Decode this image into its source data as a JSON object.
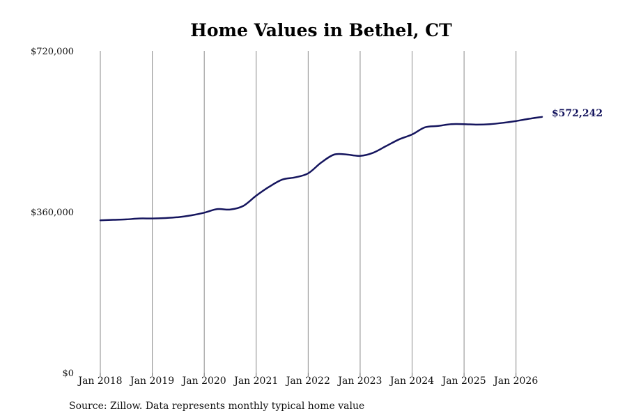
{
  "chart_data": {
    "type": "line",
    "title": "Home Values in Bethel, CT",
    "xlabel": "",
    "ylabel": "",
    "ylim": [
      0,
      720000
    ],
    "y_ticks": [
      "$0",
      "$360,000",
      "$720,000"
    ],
    "y_tick_values": [
      0,
      360000,
      720000
    ],
    "x_ticks": [
      "Jan 2018",
      "Jan 2019",
      "Jan 2020",
      "Jan 2021",
      "Jan 2022",
      "Jan 2023",
      "Jan 2024",
      "Jan 2025",
      "Jan 2026"
    ],
    "x_tick_years": [
      2018,
      2019,
      2020,
      2021,
      2022,
      2023,
      2024,
      2025,
      2026
    ],
    "xlim": [
      "2018-01",
      "2026-07"
    ],
    "grid": "vertical",
    "series_color": "#15155e",
    "end_label": "$572,242",
    "series": [
      {
        "name": "",
        "points": [
          {
            "date": "2018-01",
            "value": 341000
          },
          {
            "date": "2018-04",
            "value": 342000
          },
          {
            "date": "2018-07",
            "value": 343000
          },
          {
            "date": "2018-10",
            "value": 345000
          },
          {
            "date": "2019-01",
            "value": 345000
          },
          {
            "date": "2019-04",
            "value": 346000
          },
          {
            "date": "2019-07",
            "value": 348000
          },
          {
            "date": "2019-10",
            "value": 352000
          },
          {
            "date": "2020-01",
            "value": 358000
          },
          {
            "date": "2020-04",
            "value": 366000
          },
          {
            "date": "2020-07",
            "value": 365000
          },
          {
            "date": "2020-10",
            "value": 373000
          },
          {
            "date": "2021-01",
            "value": 396000
          },
          {
            "date": "2021-04",
            "value": 416000
          },
          {
            "date": "2021-07",
            "value": 432000
          },
          {
            "date": "2021-10",
            "value": 437000
          },
          {
            "date": "2022-01",
            "value": 446000
          },
          {
            "date": "2022-04",
            "value": 470000
          },
          {
            "date": "2022-07",
            "value": 488000
          },
          {
            "date": "2022-10",
            "value": 488000
          },
          {
            "date": "2023-01",
            "value": 485000
          },
          {
            "date": "2023-04",
            "value": 492000
          },
          {
            "date": "2023-07",
            "value": 507000
          },
          {
            "date": "2023-10",
            "value": 522000
          },
          {
            "date": "2024-01",
            "value": 533000
          },
          {
            "date": "2024-04",
            "value": 549000
          },
          {
            "date": "2024-07",
            "value": 552000
          },
          {
            "date": "2024-10",
            "value": 556000
          },
          {
            "date": "2025-01",
            "value": 556000
          },
          {
            "date": "2025-04",
            "value": 555000
          },
          {
            "date": "2025-07",
            "value": 556000
          },
          {
            "date": "2025-10",
            "value": 559000
          },
          {
            "date": "2026-01",
            "value": 563000
          },
          {
            "date": "2026-04",
            "value": 568000
          },
          {
            "date": "2026-07",
            "value": 572242
          }
        ]
      }
    ]
  },
  "source_note": "Source: Zillow. Data represents monthly typical home value"
}
